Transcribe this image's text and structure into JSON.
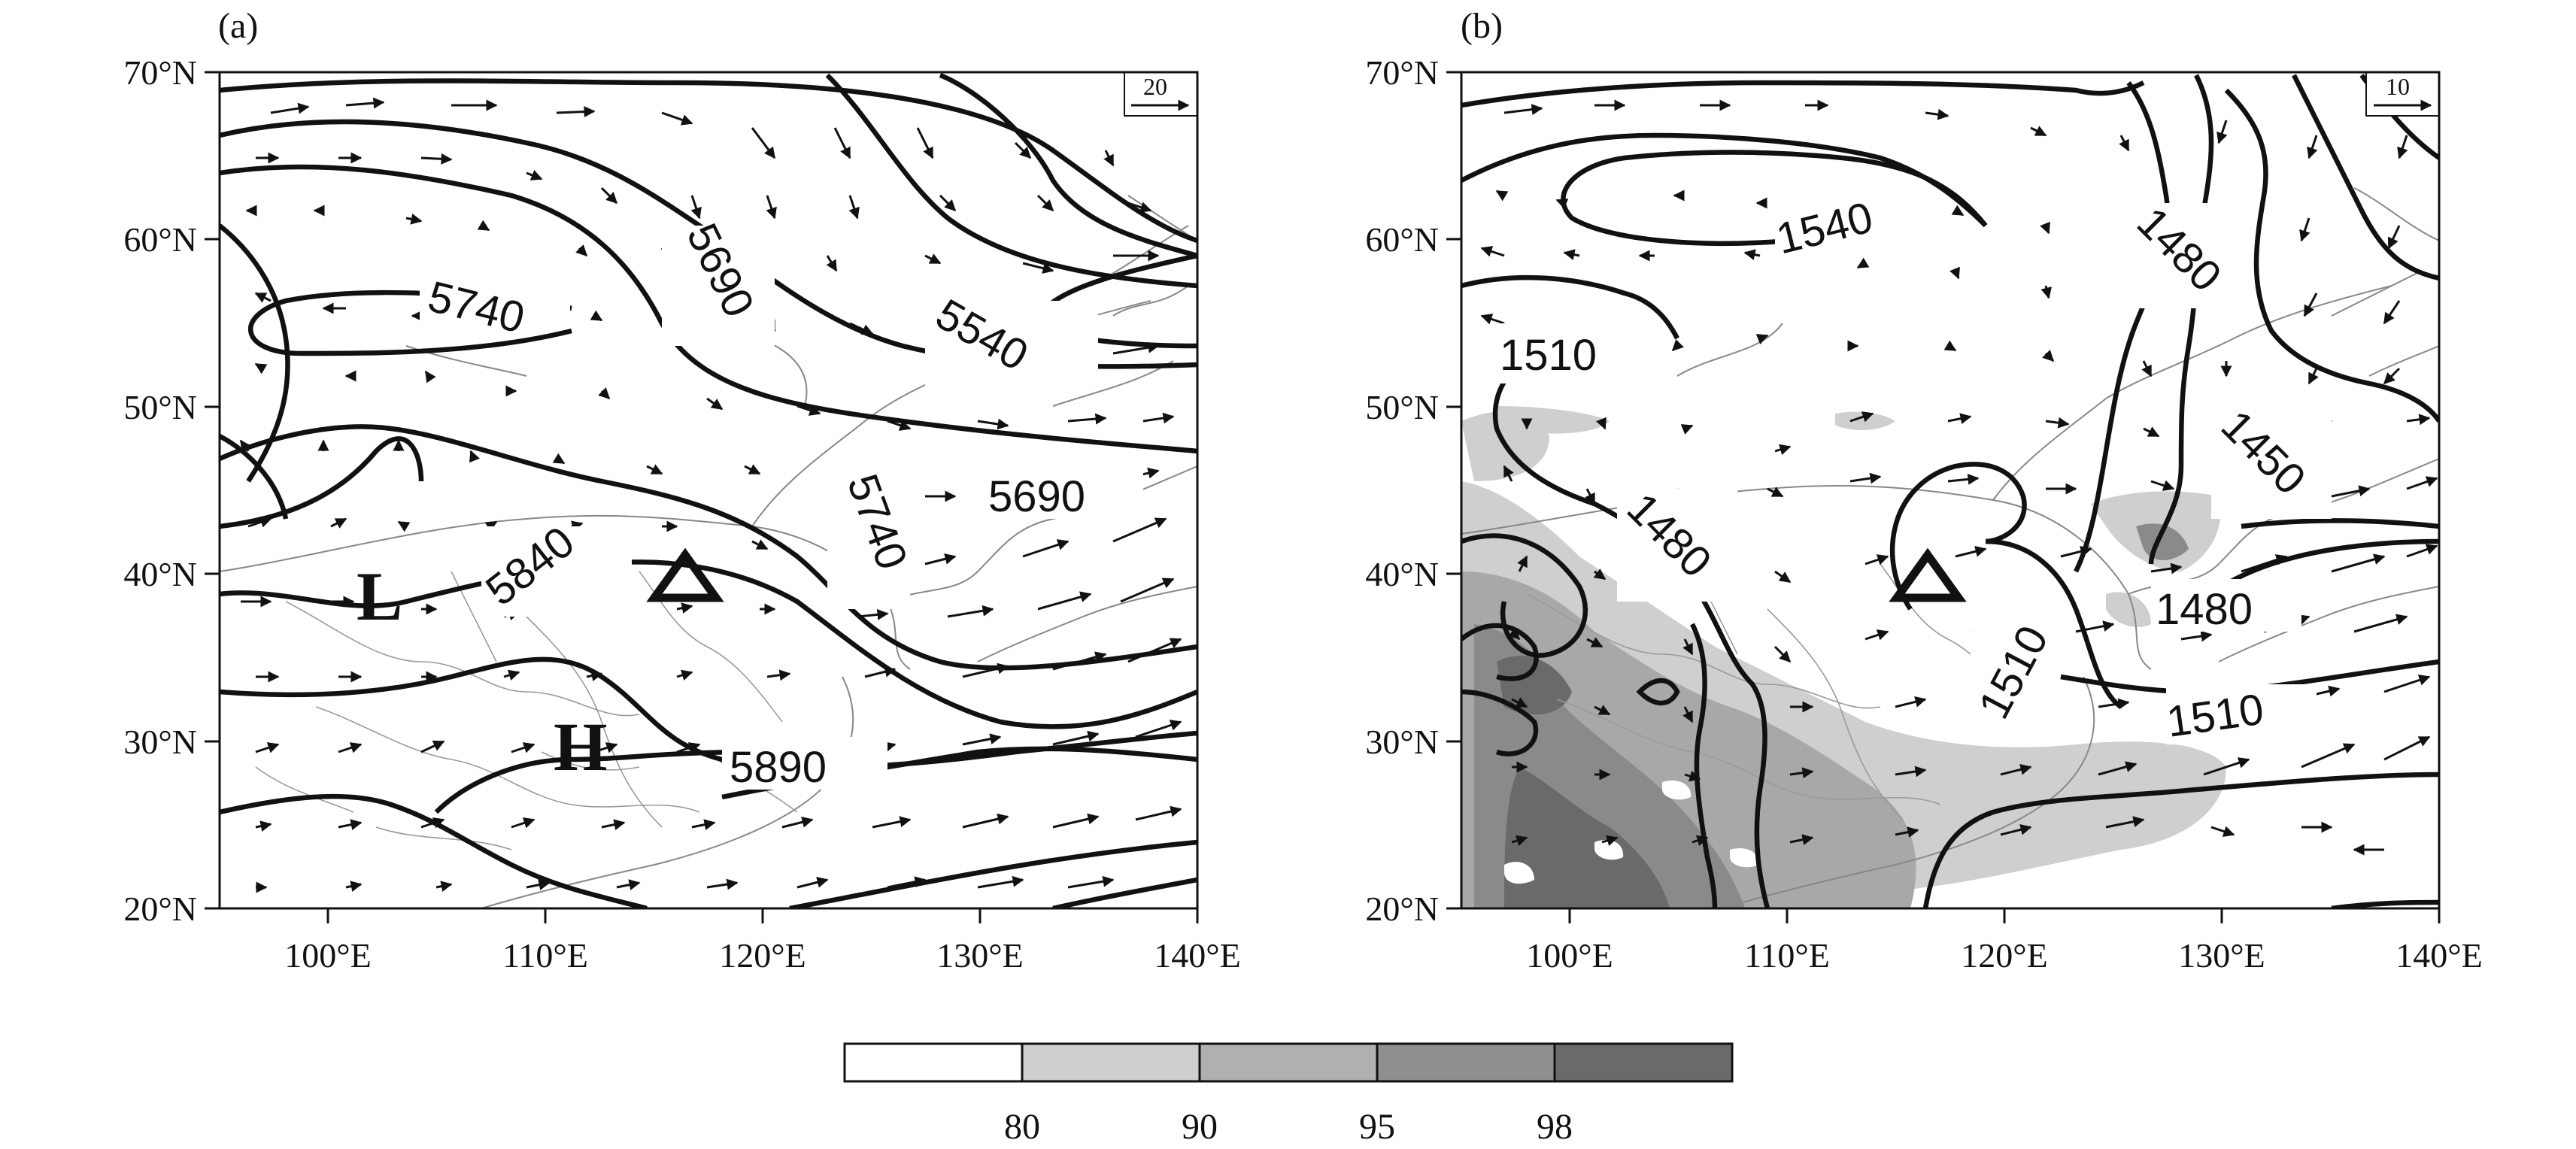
{
  "panels": [
    {
      "id": "a",
      "label": "(a)",
      "ref_vector": "20",
      "contour_labels": [
        "5740",
        "5690",
        "5540",
        "5690",
        "5740",
        "5840",
        "5890"
      ],
      "pressure_centers": [
        {
          "text": "L"
        },
        {
          "text": "H"
        }
      ],
      "marker": "triangle"
    },
    {
      "id": "b",
      "label": "(b)",
      "ref_vector": "10",
      "contour_labels": [
        "1540",
        "1480",
        "1510",
        "1480",
        "1450",
        "1480",
        "1510",
        "1510"
      ],
      "marker": "triangle"
    }
  ],
  "axes": {
    "lat_ticks": [
      "70°N",
      "60°N",
      "50°N",
      "40°N",
      "30°N",
      "20°N"
    ],
    "lon_ticks": [
      "100°E",
      "110°E",
      "120°E",
      "130°E",
      "140°E"
    ],
    "lat_range": [
      20,
      70
    ],
    "lon_range": [
      95,
      140
    ]
  },
  "colorbar": {
    "tick_labels": [
      "80",
      "90",
      "95",
      "98"
    ],
    "fills": [
      "#ffffff",
      "#cfcfcf",
      "#b0b0b0",
      "#8f8f8f",
      "#6a6a6a"
    ]
  }
}
